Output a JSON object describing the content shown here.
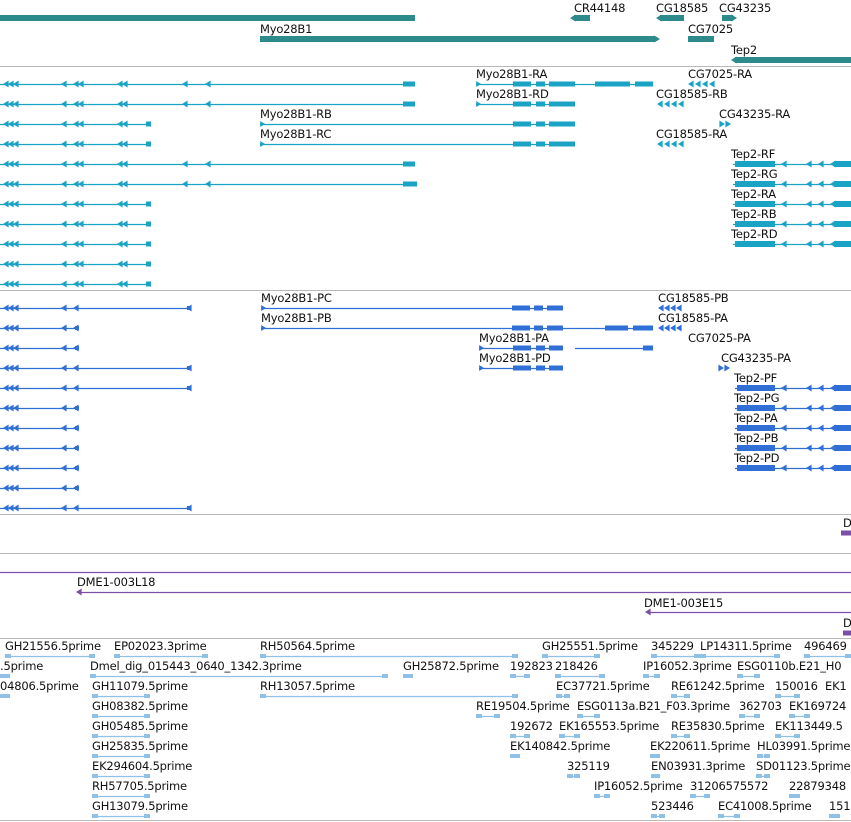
{
  "colors": {
    "gene": "#2e8b8b",
    "transcript": "#1aa3c4",
    "protein": "#2f6fd6",
    "clone": "#7a4fa8",
    "est": "#8fc0e6",
    "divider": "#b9b9b9"
  },
  "gene_track": {
    "labels": [
      "CR44148",
      "CG18585",
      "CG43235",
      "Myo28B1",
      "CG7025",
      "Tep2"
    ]
  },
  "transcript_track": {
    "labels": [
      "Myo28B1-RA",
      "CG7025-RA",
      "Myo28B1-RD",
      "CG18585-RB",
      "Myo28B1-RB",
      "CG43235-RA",
      "Myo28B1-RC",
      "CG18585-RA",
      "Tep2-RF",
      "Tep2-RG",
      "Tep2-RA",
      "Tep2-RB",
      "Tep2-RD"
    ]
  },
  "protein_track": {
    "labels": [
      "Myo28B1-PC",
      "CG18585-PB",
      "Myo28B1-PB",
      "CG18585-PA",
      "Myo28B1-PA",
      "CG7025-PA",
      "Myo28B1-PD",
      "CG43235-PA",
      "Tep2-PF",
      "Tep2-PG",
      "Tep2-PA",
      "Tep2-PB",
      "Tep2-PD"
    ]
  },
  "clone_track": {
    "labels": [
      "D",
      "DME1-003L18",
      "DME1-003E15",
      "D"
    ]
  },
  "est_track": {
    "labels": [
      "GH21556.5prime",
      "EP02023.3prime",
      "RH50564.5prime",
      "GH25551.5prime",
      "345229",
      "LP14311.5prime",
      "496469",
      ".5prime",
      "Dmel_dig_015443_0640_1342.3prime",
      "GH25872.5prime",
      "192823",
      "218426",
      "IP16052.3prime",
      "ESG0110b.E21_H0",
      "04806.5prime",
      "GH11079.5prime",
      "RH13057.5prime",
      "EC37721.5prime",
      "RE61242.5prime",
      "150016",
      "EK1",
      "GH08382.5prime",
      "RE19504.5prime",
      "ESG0113a.B21_F03.3prime",
      "362703",
      "EK169724",
      "GH05485.5prime",
      "192672",
      "EK165553.5prime",
      "RE35830.5prime",
      "EK113449.5",
      "GH25835.5prime",
      "EK140842.5prime",
      "EK220611.5prime",
      "HL03991.5prime",
      "EK294604.5prime",
      "325119",
      "EN03931.3prime",
      "SD01123.5prime",
      "RH57705.5prime",
      "IP16052.5prime",
      "31206575572",
      "22879348",
      "GH13079.5prime",
      "523446",
      "EC41008.5prime",
      "151"
    ]
  }
}
